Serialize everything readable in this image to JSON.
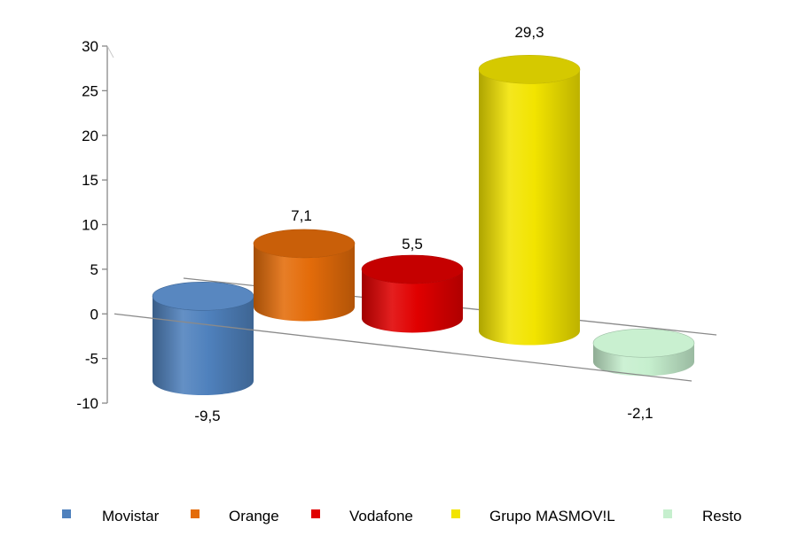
{
  "chart_data": {
    "type": "bar",
    "categories": [
      "Movistar",
      "Orange",
      "Vodafone",
      "Grupo MASMOV!L",
      "Resto"
    ],
    "values": [
      -9.5,
      7.1,
      5.5,
      29.3,
      -2.1
    ],
    "value_labels": [
      "-9,5",
      "7,1",
      "5,5",
      "29,3",
      "-2,1"
    ],
    "ylim": [
      -10,
      30
    ],
    "y_ticks": [
      30,
      25,
      20,
      15,
      10,
      5,
      0,
      -5,
      -10
    ],
    "y_tick_labels": [
      "30",
      "25",
      "20",
      "15",
      "10",
      "5",
      "0",
      "-5",
      "-10"
    ],
    "legend_position": "bottom",
    "colors": {
      "Movistar": "#4F81BD",
      "Orange": "#E46C0A",
      "Vodafone": "#E00000",
      "Grupo MASMOV!L": "#F2E400",
      "Resto": "#C6EFCE"
    },
    "bar_style": "3d-cylinder"
  }
}
